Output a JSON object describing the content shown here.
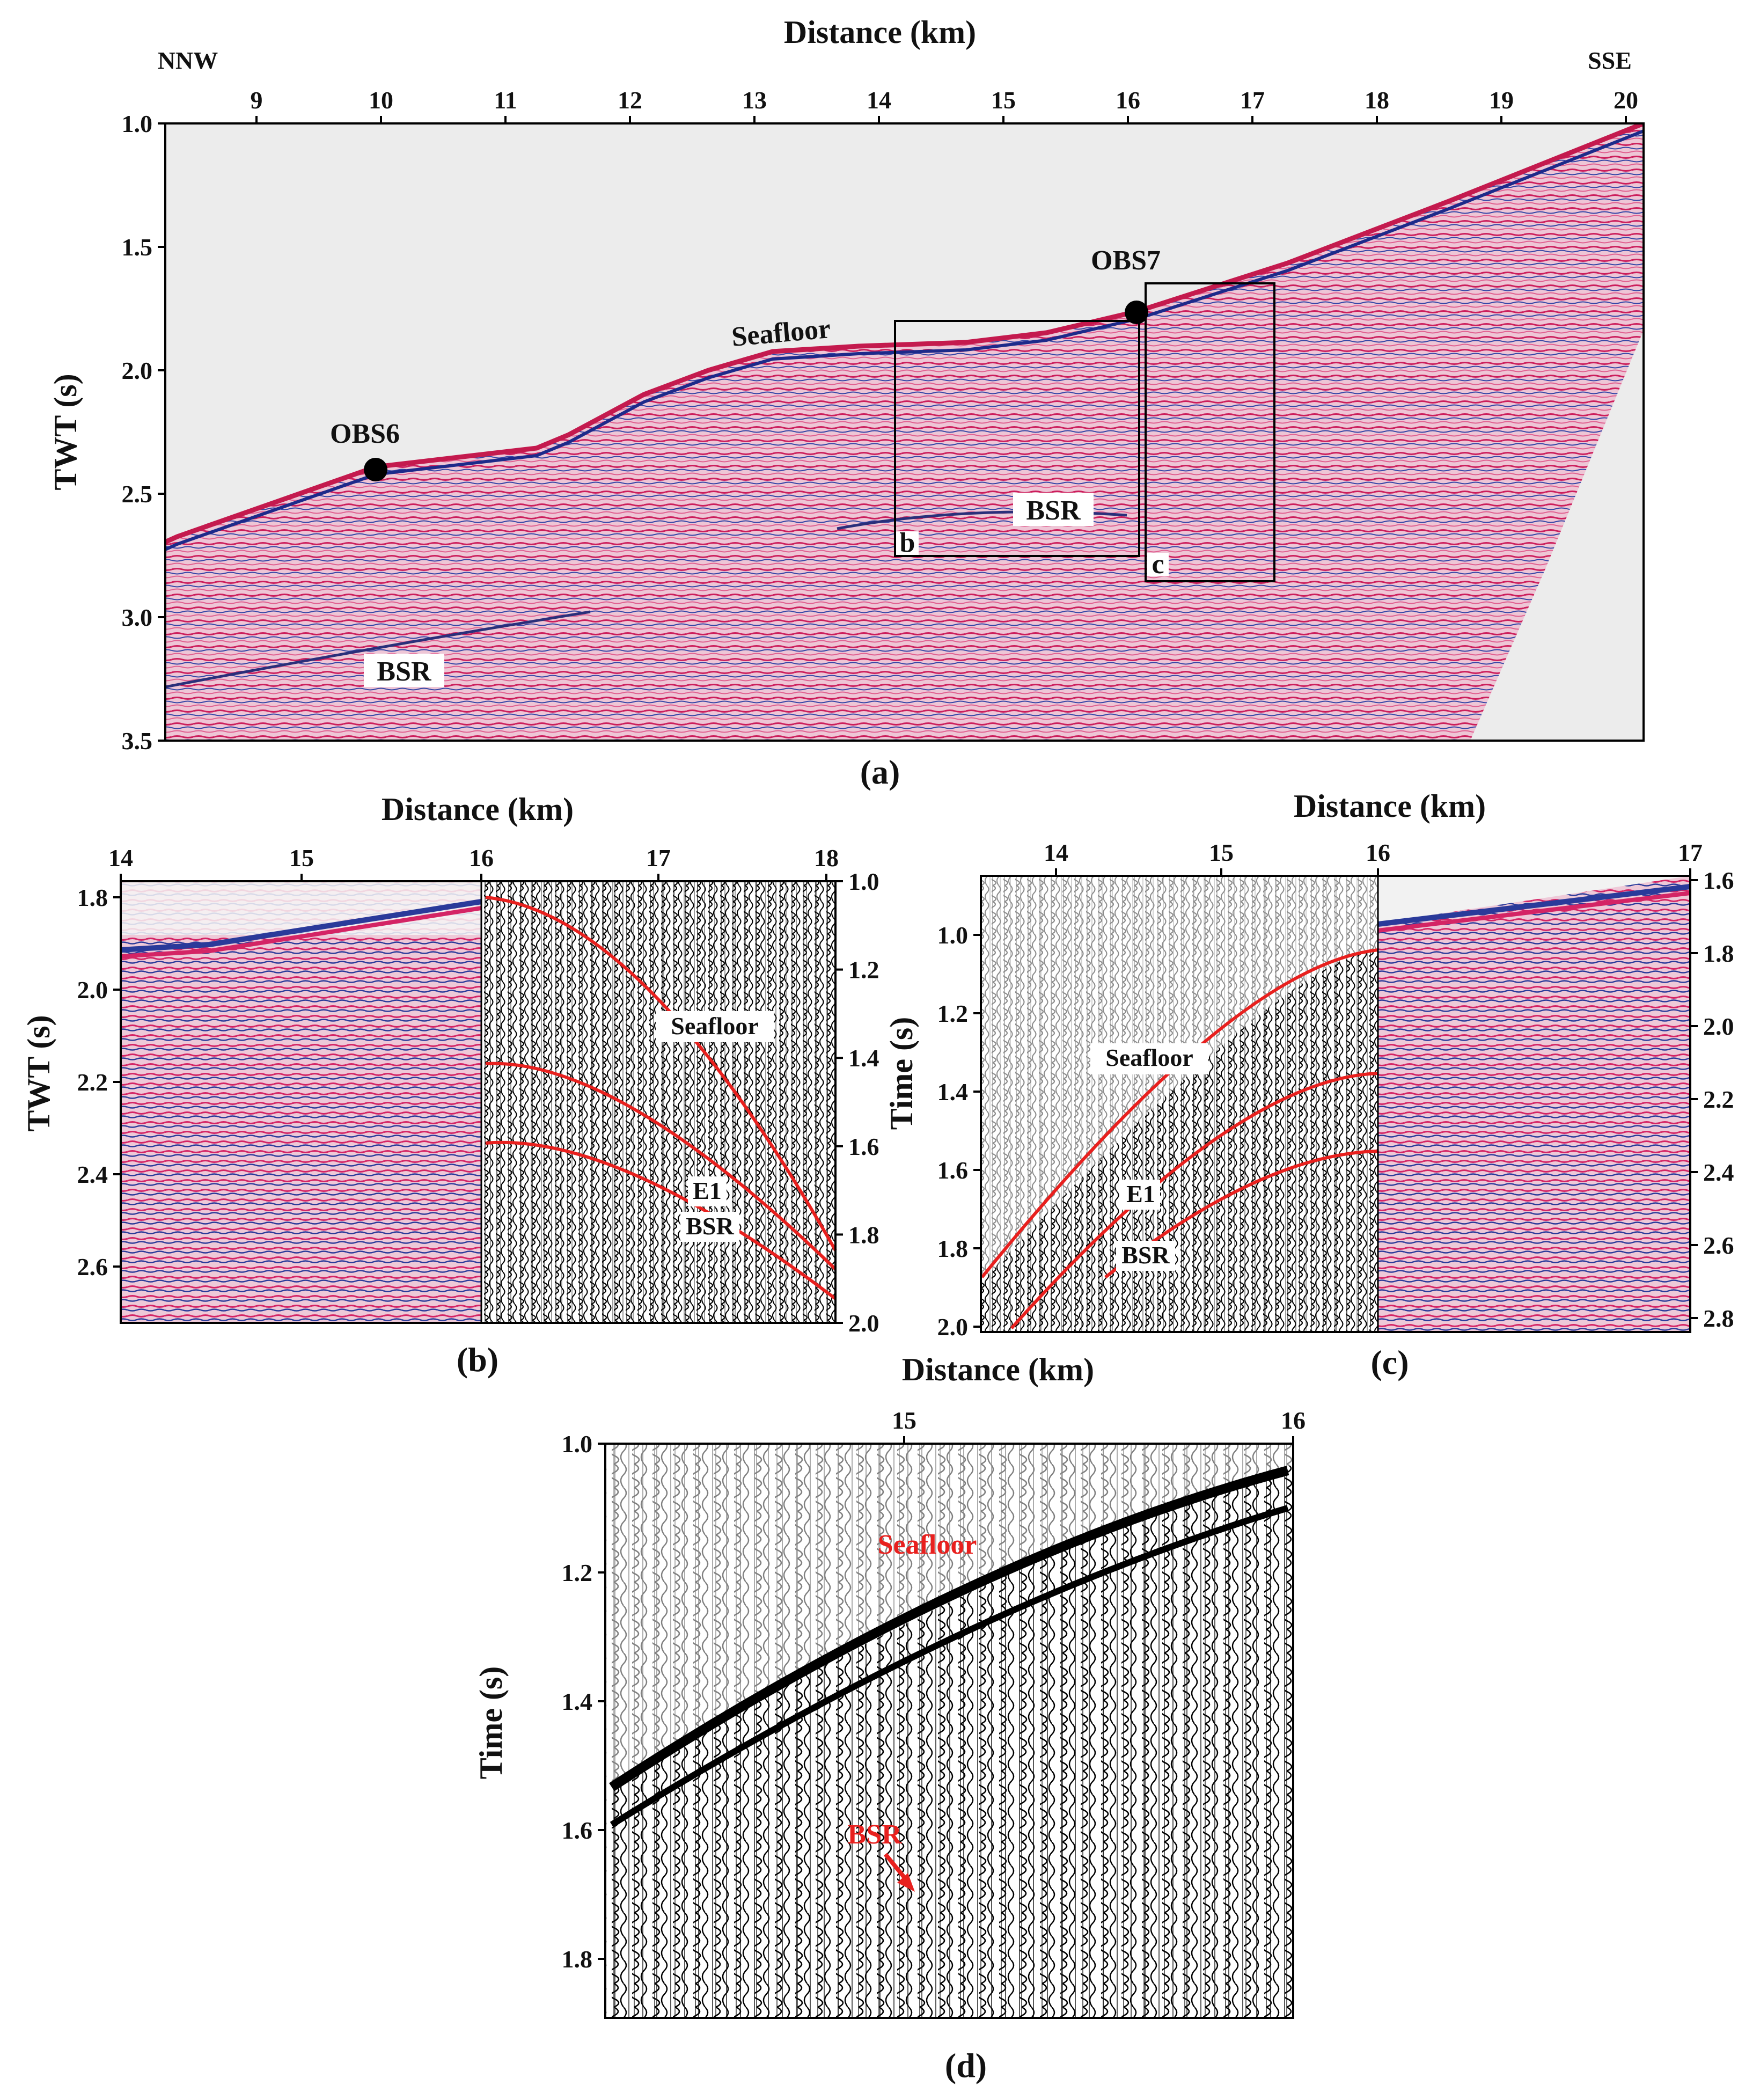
{
  "panel_a": {
    "x_title": "Distance (km)",
    "y_title": "TWT (s)",
    "dir_left": "NNW",
    "dir_right": "SSE",
    "x_ticks": [
      "9",
      "10",
      "11",
      "12",
      "13",
      "14",
      "15",
      "16",
      "17",
      "18",
      "19",
      "20"
    ],
    "y_ticks": [
      "1.0",
      "1.5",
      "2.0",
      "2.5",
      "3.0",
      "3.5"
    ],
    "labels": {
      "obs6": "OBS6",
      "obs7": "OBS7",
      "seafloor": "Seafloor",
      "bsr_deep": "BSR",
      "bsr_mid": "BSR",
      "box_b": "b",
      "box_c": "c"
    },
    "caption": "(a)"
  },
  "panel_b": {
    "x_title": "Distance (km)",
    "y_title": "TWT (s)",
    "x_ticks": [
      "14",
      "15",
      "16",
      "17",
      "18"
    ],
    "y_left_ticks": [
      "1.8",
      "2.0",
      "2.2",
      "2.4",
      "2.6"
    ],
    "y_right_ticks": [
      "1.0",
      "1.2",
      "1.4",
      "1.6",
      "1.8",
      "2.0"
    ],
    "labels": {
      "seafloor": "Seafloor",
      "e1": "E1",
      "bsr": "BSR"
    },
    "caption": "(b)"
  },
  "panel_c": {
    "x_title": "Distance (km)",
    "y_title": "Time (s)",
    "x_ticks": [
      "14",
      "15",
      "16",
      "17"
    ],
    "y_left_ticks": [
      "1.0",
      "1.2",
      "1.4",
      "1.6",
      "1.8",
      "2.0"
    ],
    "y_right_ticks": [
      "1.6",
      "1.8",
      "2.0",
      "2.2",
      "2.4",
      "2.6",
      "2.8"
    ],
    "labels": {
      "seafloor": "Seafloor",
      "e1": "E1",
      "bsr": "BSR"
    },
    "caption": "(c)"
  },
  "panel_d": {
    "x_title": "Distance (km)",
    "y_title": "Time (s)",
    "x_ticks": [
      "15",
      "16"
    ],
    "y_ticks": [
      "1.0",
      "1.2",
      "1.4",
      "1.6",
      "1.8"
    ],
    "labels": {
      "seafloor": "Seafloor",
      "bsr": "BSR"
    },
    "caption": "(d)"
  },
  "colors": {
    "annotation_red": "#e8201e",
    "seismic_red": "#d8205a",
    "seismic_blue": "#2a3a9a",
    "background_gray": "#ececec"
  }
}
